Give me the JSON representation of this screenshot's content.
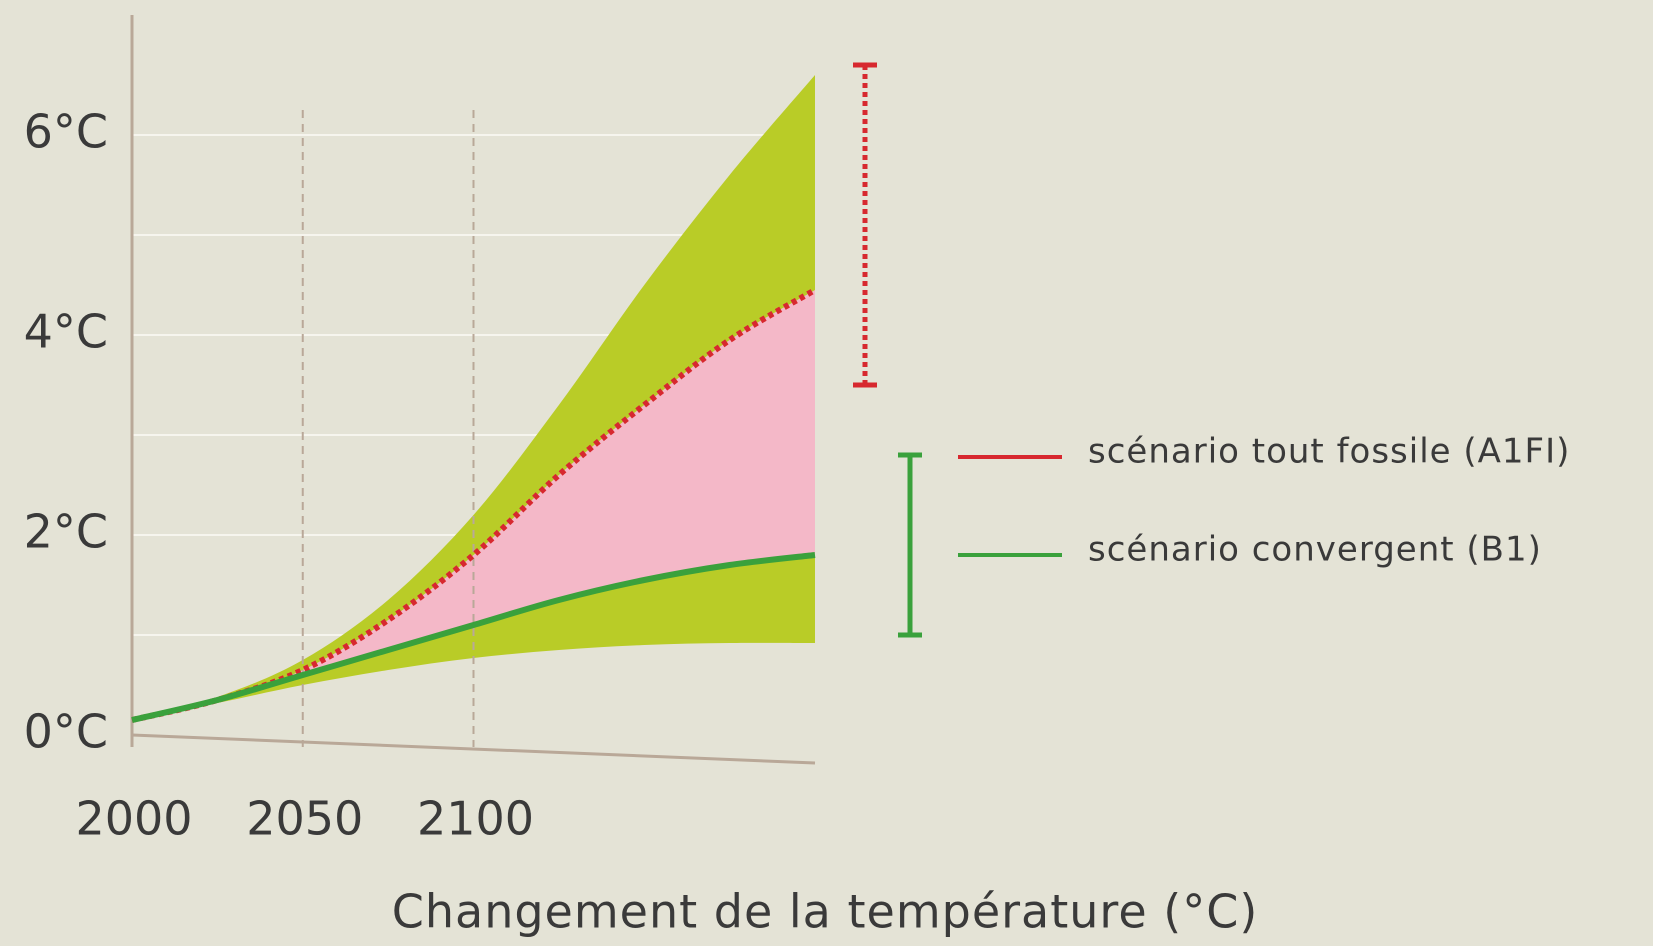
{
  "chart_data": {
    "type": "line",
    "title": "Changement de la température (°C)",
    "x": [
      2000,
      2025,
      2050,
      2075,
      2100,
      2125,
      2150,
      2175,
      2200
    ],
    "xlim": [
      2000,
      2200
    ],
    "xticks": [
      2000,
      2050,
      2100
    ],
    "ylim": [
      0,
      7
    ],
    "yticks": [
      {
        "value": 0,
        "label": "0°C"
      },
      {
        "value": 2,
        "label": "2°C"
      },
      {
        "value": 4,
        "label": "4°C"
      },
      {
        "value": 6,
        "label": "6°C"
      }
    ],
    "yminor": [
      1,
      3,
      5
    ],
    "grid": true,
    "band": {
      "color": "#b9cc27",
      "upper": [
        0.15,
        0.38,
        0.75,
        1.35,
        2.2,
        3.3,
        4.5,
        5.6,
        6.6
      ],
      "lower": [
        0.15,
        0.32,
        0.5,
        0.65,
        0.77,
        0.85,
        0.9,
        0.92,
        0.92
      ]
    },
    "between_color": "#f4b8c8",
    "series": [
      {
        "name": "scénario tout fossile (A1FI)",
        "color": "#d7282f",
        "dashed": true,
        "values": [
          0.15,
          0.35,
          0.65,
          1.15,
          1.8,
          2.6,
          3.3,
          3.95,
          4.45
        ],
        "range": [
          3.5,
          6.7
        ]
      },
      {
        "name": "scénario convergent (B1)",
        "color": "#3aa13c",
        "dashed": false,
        "values": [
          0.15,
          0.35,
          0.6,
          0.85,
          1.1,
          1.35,
          1.55,
          1.7,
          1.8
        ],
        "range": [
          1.0,
          2.8
        ]
      }
    ]
  }
}
